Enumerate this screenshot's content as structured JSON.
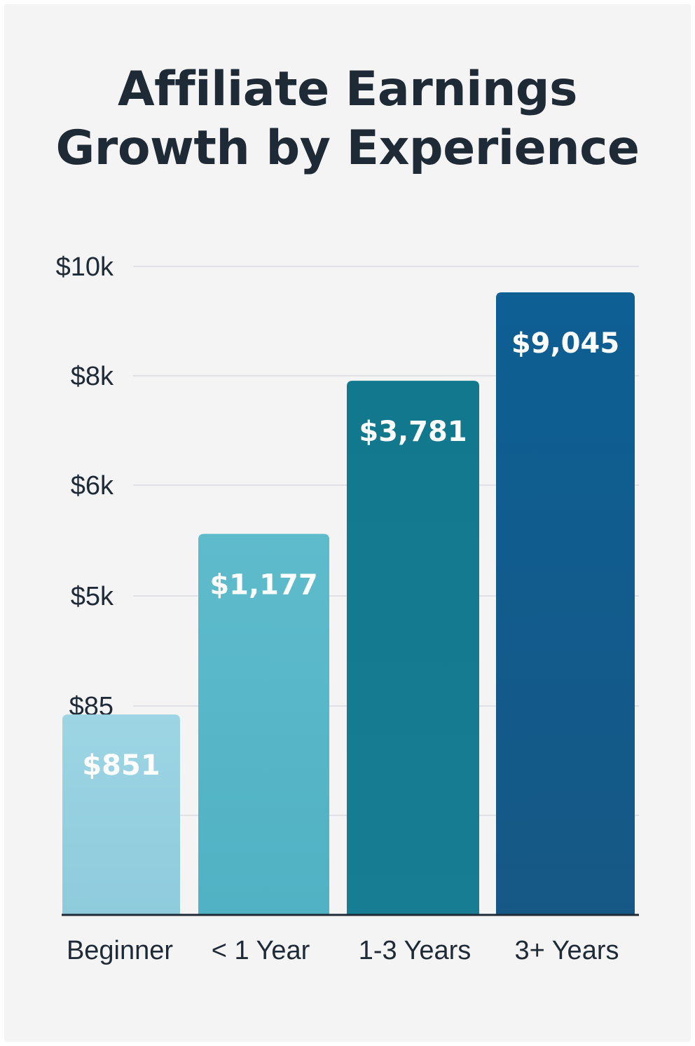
{
  "chart_data": {
    "type": "bar",
    "title": "Affiliate Earnings Growth by Experience",
    "title_lines": [
      "Affiliate Earnings",
      "Growth by Experience"
    ],
    "xlabel": "",
    "ylabel": "",
    "categories": [
      "Beginner",
      "< 1 Year",
      "1-3 Years",
      "3+ Years"
    ],
    "values": [
      851,
      1177,
      3781,
      9045
    ],
    "data_labels": [
      "$851",
      "$1,177",
      "$3,781",
      "$9,045"
    ],
    "y_tick_labels": [
      "$85",
      "$5k",
      "$6k",
      "$8k",
      "$10k"
    ],
    "grid": true,
    "legend": "none",
    "colors": [
      "#93d0e0",
      "#56b5c7",
      "#137a90",
      "#0f568a"
    ],
    "bar_visual_fraction": [
      0.322,
      0.612,
      0.858,
      1.0
    ]
  }
}
